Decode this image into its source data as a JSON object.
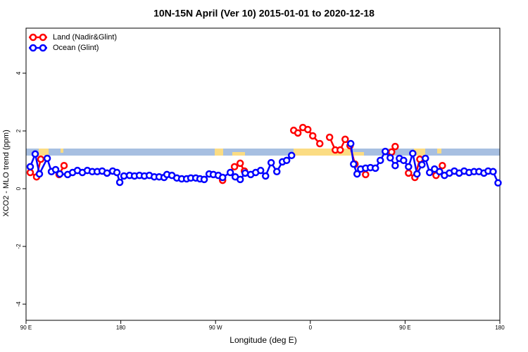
{
  "chart_data": {
    "type": "line",
    "title": "10N-15N April (Ver 10)   2015-01-01 to 2020-12-18",
    "x_label": "Longitude (deg E)",
    "y_label": "XCO2 - MLO trend (ppm)",
    "xlim": [
      90,
      540
    ],
    "xticks": [
      {
        "value": 90,
        "label": "90 E"
      },
      180,
      {
        "value": 270,
        "label": "90 W"
      },
      {
        "value": 360,
        "label": "0"
      },
      {
        "value": 450,
        "label": "90 E"
      },
      {
        "value": 540,
        "label": "180"
      }
    ],
    "ylim": [
      -4.56,
      5.56
    ],
    "yticks": [
      -4,
      -2,
      0,
      2,
      4
    ],
    "legend": "top-left",
    "series": [
      {
        "name": "Land (Nadir&Glint)",
        "color": "#ff0000",
        "x": [
          94.0,
          100.0,
          104.0,
          112.0,
          121.4,
          126.1,
          199.0,
          276.7,
          282.7,
          288.0,
          293.4,
          297.4,
          319.5,
          344.2,
          348.2,
          352.9,
          357.6,
          362.3,
          369.0,
          373.7,
          378.3,
          383.7,
          388.4,
          393.1,
          397.7,
          402.4,
          407.1,
          412.5,
          426.5,
          437.2,
          440.6,
          446.6,
          453.3,
          459.3,
          464.0,
          472.0,
          479.4,
          485.4
        ],
        "values": [
          0.56,
          0.41,
          1.02,
          null,
          0.49,
          0.8,
          null,
          0.29,
          null,
          0.76,
          0.88,
          0.61,
          null,
          2.02,
          1.93,
          2.12,
          2.05,
          1.83,
          1.56,
          null,
          1.78,
          1.34,
          1.34,
          1.71,
          1.49,
          0.85,
          null,
          0.49,
          null,
          1.27,
          1.46,
          null,
          0.54,
          0.39,
          1.02,
          null,
          0.46,
          0.8
        ]
      },
      {
        "name": "Ocean (Glint)",
        "color": "#0000ff",
        "x": [
          94.0,
          98.7,
          102.7,
          110.1,
          114.1,
          118.1,
          122.1,
          129.5,
          134.2,
          138.8,
          143.5,
          148.2,
          152.9,
          157.6,
          162.3,
          166.9,
          172.3,
          176.3,
          179.0,
          183.0,
          188.3,
          193.0,
          197.7,
          202.4,
          207.1,
          211.8,
          216.4,
          221.1,
          223.8,
          228.5,
          233.2,
          237.8,
          242.5,
          246.5,
          251.2,
          255.2,
          259.2,
          263.9,
          267.9,
          272.6,
          276.7,
          284.0,
          288.7,
          293.4,
          298.1,
          303.4,
          308.1,
          312.8,
          317.5,
          322.8,
          328.2,
          333.5,
          337.5,
          342.2,
          370.0,
          398.4,
          401.1,
          404.4,
          407.8,
          412.5,
          417.1,
          421.8,
          426.5,
          431.2,
          435.9,
          440.6,
          444.6,
          448.6,
          453.3,
          457.3,
          461.3,
          466.0,
          469.3,
          473.3,
          478.0,
          482.7,
          487.4,
          492.1,
          496.8,
          501.4,
          506.1,
          510.8,
          515.5,
          520.2,
          524.9,
          528.9,
          533.6,
          538.3
        ],
        "values": [
          0.76,
          1.2,
          0.51,
          1.05,
          0.59,
          0.66,
          0.51,
          0.49,
          0.56,
          0.63,
          0.56,
          0.63,
          0.59,
          0.59,
          0.61,
          0.54,
          0.61,
          0.56,
          0.22,
          0.44,
          0.46,
          0.44,
          0.46,
          0.44,
          0.46,
          0.41,
          0.41,
          0.39,
          0.49,
          0.46,
          0.37,
          0.34,
          0.34,
          0.37,
          0.37,
          0.34,
          0.32,
          0.51,
          0.49,
          0.46,
          0.39,
          0.56,
          0.41,
          0.32,
          0.54,
          0.49,
          0.56,
          0.63,
          0.44,
          0.9,
          0.59,
          0.93,
          0.98,
          1.15,
          null,
          1.56,
          0.85,
          0.51,
          0.68,
          0.71,
          0.73,
          0.71,
          0.98,
          1.29,
          1.07,
          0.8,
          1.05,
          0.98,
          0.76,
          1.22,
          0.51,
          0.83,
          1.05,
          0.56,
          0.68,
          0.59,
          0.46,
          0.54,
          0.61,
          0.54,
          0.61,
          0.56,
          0.59,
          0.59,
          0.54,
          0.61,
          0.59,
          0.2
        ]
      }
    ]
  }
}
